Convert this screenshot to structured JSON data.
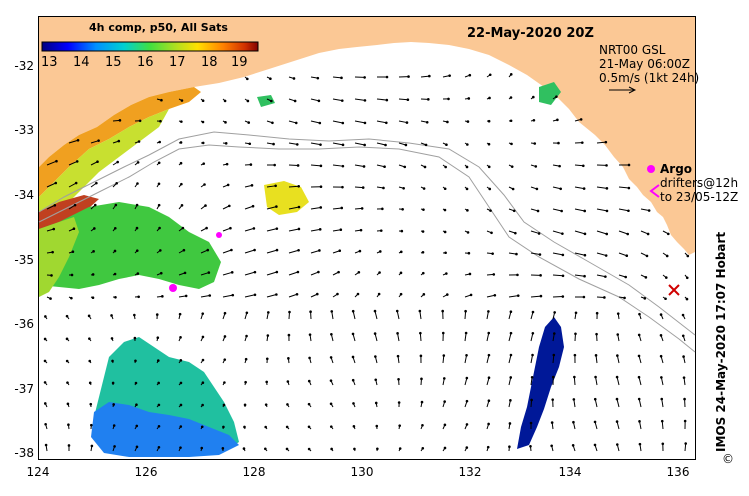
{
  "colorbar": {
    "title": "4h comp, p50, All Sats",
    "ticks": [
      "13",
      "14",
      "15",
      "16",
      "17",
      "18",
      "19"
    ],
    "colors": [
      "#000080",
      "#0000ff",
      "#0080ff",
      "#00c0ff",
      "#00e0a0",
      "#40e040",
      "#a0e020",
      "#e0e000",
      "#ffa000",
      "#ff5000",
      "#c02000",
      "#800000"
    ]
  },
  "header": {
    "date": "22-May-2020 20Z"
  },
  "legend": {
    "line1": "NRT00 GSL",
    "line2": "21-May 06:00Z",
    "line3": "0.5m/s (1kt 24h)"
  },
  "argo": {
    "label": "Argo",
    "drifters_line1": "drifters@12h",
    "drifters_line2": "to 23/05-12Z"
  },
  "axes": {
    "x_ticks": [
      "124",
      "126",
      "128",
      "130",
      "132",
      "134",
      "136"
    ],
    "y_ticks": [
      "-32",
      "-33",
      "-34",
      "-35",
      "-36",
      "-37",
      "-38"
    ]
  },
  "credit": {
    "text": "IMOS 24-May-2020 17:07 Hobart",
    "copyright": "©"
  },
  "colors": {
    "land": "#fbc895",
    "ocean": "#ffffff",
    "arrow": "#000000",
    "argo": "#ff00ff"
  }
}
